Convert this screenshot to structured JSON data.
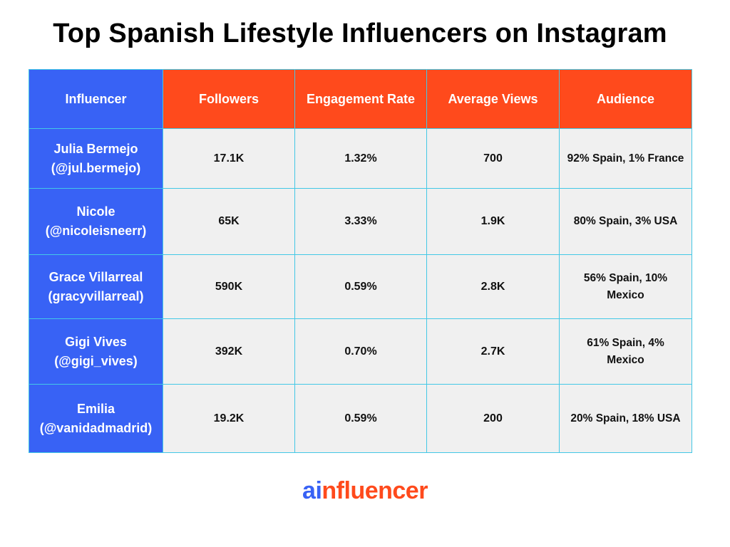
{
  "title": "Top Spanish Lifestyle Influencers on Instagram",
  "table": {
    "headers": [
      "Influencer",
      "Followers",
      "Engagement Rate",
      "Average Views",
      "Audience"
    ],
    "rows": [
      {
        "name": "Julia Bermejo",
        "handle": "(@jul.bermejo)",
        "followers": "17.1K",
        "engagement_rate": "1.32%",
        "average_views": "700",
        "audience_line1": "92% Spain, 1% France",
        "audience_line2": ""
      },
      {
        "name": "Nicole",
        "handle": "(@nicoleisneerr)",
        "followers": "65K",
        "engagement_rate": "3.33%",
        "average_views": "1.9K",
        "audience_line1": "80% Spain, 3% USA",
        "audience_line2": ""
      },
      {
        "name": "Grace Villarreal",
        "handle": "(gracyvillarreal)",
        "followers": "590K",
        "engagement_rate": "0.59%",
        "average_views": "2.8K",
        "audience_line1": "56% Spain, 10%",
        "audience_line2": "Mexico"
      },
      {
        "name": "Gigi Vives",
        "handle": "(@gigi_vives)",
        "followers": "392K",
        "engagement_rate": "0.70%",
        "average_views": "2.7K",
        "audience_line1": "61% Spain, 4%",
        "audience_line2": "Mexico"
      },
      {
        "name": "Emilia",
        "handle": "(@vanidadmadrid)",
        "followers": "19.2K",
        "engagement_rate": "0.59%",
        "average_views": "200",
        "audience_line1": "20% Spain, 18% USA",
        "audience_line2": ""
      }
    ]
  },
  "logo": {
    "part1": "ai",
    "part2": "nfluencer"
  },
  "colors": {
    "blue": "#3862f5",
    "orange": "#ff4a1c",
    "cell_background": "#f0f0f0",
    "grid_line": "#43c8e6"
  }
}
